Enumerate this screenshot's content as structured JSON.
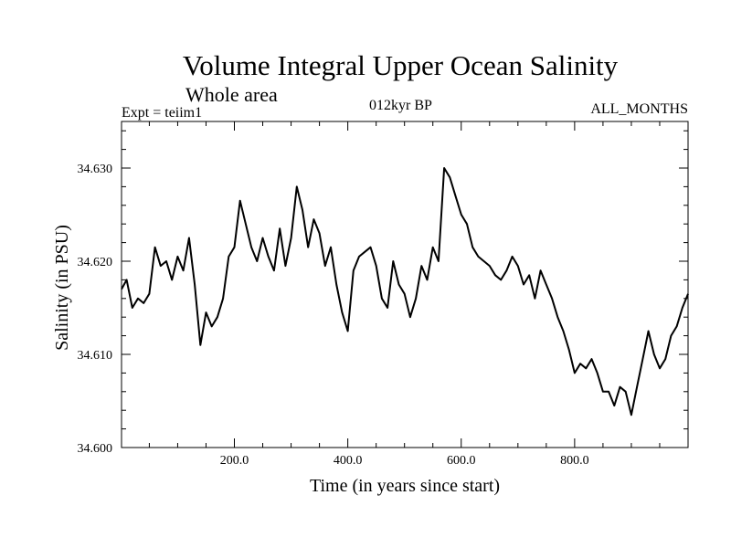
{
  "chart_data": {
    "type": "line",
    "title": "Volume Integral Upper Ocean Salinity",
    "subtitle": "Whole area",
    "left_label": "Expt = teiim1",
    "center_label": "012kyr BP",
    "right_label": "ALL_MONTHS",
    "xlabel": "Time (in years since start)",
    "ylabel": "Salinity (in PSU)",
    "xlim": [
      1,
      1000
    ],
    "ylim": [
      34.6,
      34.635
    ],
    "xticks": [
      {
        "value": 200,
        "label": "200.0"
      },
      {
        "value": 400,
        "label": "400.0"
      },
      {
        "value": 600,
        "label": "600.0"
      },
      {
        "value": 800,
        "label": "800.0"
      }
    ],
    "yticks": [
      {
        "value": 34.6,
        "label": "34.600"
      },
      {
        "value": 34.61,
        "label": "34.610"
      },
      {
        "value": 34.62,
        "label": "34.620"
      },
      {
        "value": 34.63,
        "label": "34.630"
      }
    ],
    "grid": false,
    "line_color": "#000000",
    "series": [
      {
        "x": [
          1,
          10,
          20,
          30,
          40,
          50,
          60,
          70,
          80,
          90,
          100,
          110,
          120,
          130,
          140,
          150,
          160,
          170,
          180,
          190,
          200,
          210,
          220,
          230,
          240,
          250,
          260,
          270,
          280,
          290,
          300,
          310,
          320,
          330,
          340,
          350,
          360,
          370,
          380,
          390,
          400,
          410,
          420,
          430,
          440,
          450,
          460,
          470,
          480,
          490,
          500,
          510,
          520,
          530,
          540,
          550,
          560,
          570,
          580,
          590,
          600,
          610,
          620,
          630,
          640,
          650,
          660,
          670,
          680,
          690,
          700,
          710,
          720,
          730,
          740,
          750,
          760,
          770,
          780,
          790,
          800,
          810,
          820,
          830,
          840,
          850,
          860,
          870,
          880,
          890,
          900,
          910,
          920,
          930,
          940,
          950,
          960,
          970,
          980,
          990,
          1000
        ],
        "y": [
          34.617,
          34.618,
          34.615,
          34.616,
          34.6155,
          34.6165,
          34.6215,
          34.6195,
          34.62,
          34.618,
          34.6205,
          34.619,
          34.6225,
          34.6175,
          34.611,
          34.6145,
          34.613,
          34.614,
          34.616,
          34.6205,
          34.6215,
          34.6265,
          34.624,
          34.6215,
          34.62,
          34.6225,
          34.6205,
          34.619,
          34.6235,
          34.6195,
          34.6225,
          34.628,
          34.6255,
          34.6215,
          34.6245,
          34.623,
          34.6195,
          34.6215,
          34.6175,
          34.6145,
          34.6125,
          34.619,
          34.6205,
          34.621,
          34.6215,
          34.6195,
          34.616,
          34.615,
          34.62,
          34.6175,
          34.6165,
          34.614,
          34.616,
          34.6195,
          34.618,
          34.6215,
          34.62,
          34.63,
          34.629,
          34.627,
          34.625,
          34.624,
          34.6215,
          34.6205,
          34.62,
          34.6195,
          34.6185,
          34.618,
          34.619,
          34.6205,
          34.6195,
          34.6175,
          34.6185,
          34.616,
          34.619,
          34.6175,
          34.616,
          34.614,
          34.6125,
          34.6105,
          34.608,
          34.609,
          34.6085,
          34.6095,
          34.608,
          34.606,
          34.606,
          34.6045,
          34.6065,
          34.606,
          34.6035,
          34.6065,
          34.6095,
          34.6125,
          34.61,
          34.6085,
          34.6095,
          34.612,
          34.613,
          34.615,
          34.6165
        ]
      }
    ]
  }
}
